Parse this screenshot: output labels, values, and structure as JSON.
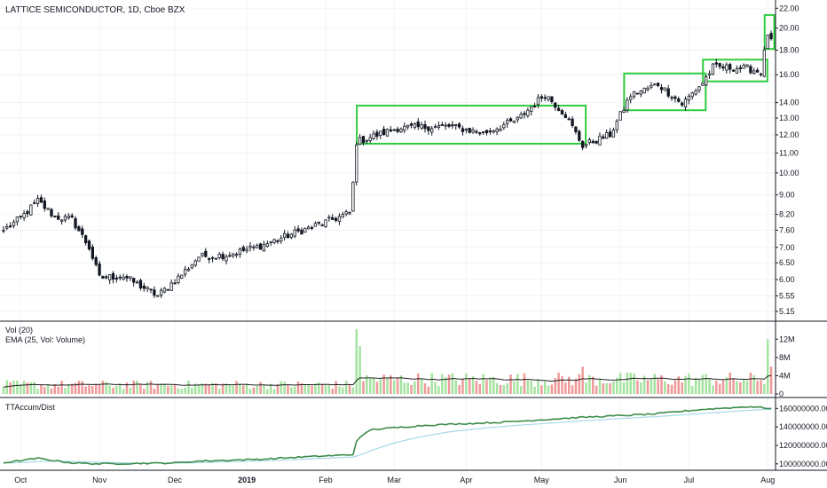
{
  "chart_data": {
    "type": "candlestick",
    "title": "LATTICE SEMICONDUCTOR, 1D, Cboe BZX",
    "x_labels": [
      "Oct",
      "Nov",
      "Dec",
      "2019",
      "Feb",
      "Mar",
      "Apr",
      "May",
      "Jun",
      "Jul",
      "Aug"
    ],
    "price_axis": {
      "scale": "log",
      "ticks": [
        "22.00",
        "20.00",
        "18.00",
        "16.00",
        "14.00",
        "13.00",
        "12.00",
        "11.00",
        "10.00",
        "9.00",
        "8.20",
        "7.60",
        "7.00",
        "6.50",
        "6.00",
        "5.55",
        "5.15"
      ],
      "range": [
        5.0,
        22.5
      ]
    },
    "price_path": [
      {
        "date": "2018-09-24",
        "close": 7.6
      },
      {
        "date": "2018-10-01",
        "close": 8.05
      },
      {
        "date": "2018-10-08",
        "close": 8.75
      },
      {
        "date": "2018-10-15",
        "close": 8.1
      },
      {
        "date": "2018-10-22",
        "close": 8.0
      },
      {
        "date": "2018-10-29",
        "close": 7.0
      },
      {
        "date": "2018-11-01",
        "close": 6.05
      },
      {
        "date": "2018-11-12",
        "close": 6.1
      },
      {
        "date": "2018-11-26",
        "close": 5.55
      },
      {
        "date": "2018-12-05",
        "close": 6.15
      },
      {
        "date": "2018-12-12",
        "close": 6.7
      },
      {
        "date": "2018-12-24",
        "close": 6.75
      },
      {
        "date": "2019-01-07",
        "close": 7.05
      },
      {
        "date": "2019-01-21",
        "close": 7.5
      },
      {
        "date": "2019-02-04",
        "close": 7.95
      },
      {
        "date": "2019-02-12",
        "close": 8.25
      },
      {
        "date": "2019-02-13",
        "close": 9.5
      },
      {
        "date": "2019-02-14",
        "close": 11.6
      },
      {
        "date": "2019-03-04",
        "close": 12.4
      },
      {
        "date": "2019-03-25",
        "close": 12.5
      },
      {
        "date": "2019-04-08",
        "close": 12.1
      },
      {
        "date": "2019-04-22",
        "close": 12.9
      },
      {
        "date": "2019-05-02",
        "close": 14.6
      },
      {
        "date": "2019-05-10",
        "close": 13.2
      },
      {
        "date": "2019-05-17",
        "close": 11.4
      },
      {
        "date": "2019-05-29",
        "close": 12.0
      },
      {
        "date": "2019-06-06",
        "close": 14.5
      },
      {
        "date": "2019-06-18",
        "close": 15.3
      },
      {
        "date": "2019-06-27",
        "close": 13.9
      },
      {
        "date": "2019-07-05",
        "close": 15.4
      },
      {
        "date": "2019-07-10",
        "close": 16.6
      },
      {
        "date": "2019-07-24",
        "close": 16.5
      },
      {
        "date": "2019-07-30",
        "close": 16.2
      },
      {
        "date": "2019-08-01",
        "close": 19.5
      },
      {
        "date": "2019-08-02",
        "close": 19.0
      }
    ],
    "highlight_boxes": [
      {
        "start": "2019-02-15",
        "end": "2019-05-17",
        "low": 11.5,
        "high": 13.8
      },
      {
        "start": "2019-06-05",
        "end": "2019-07-05",
        "low": 13.5,
        "high": 16.1
      },
      {
        "start": "2019-07-08",
        "end": "2019-07-31",
        "low": 15.5,
        "high": 17.2
      },
      {
        "start": "2019-08-01",
        "end": "2019-08-02",
        "low": 18.1,
        "high": 21.3
      }
    ],
    "volume": {
      "label": "Vol (20)",
      "ema_label": "EMA (25, Vol: Volume)",
      "ticks": [
        "12M",
        "8M",
        "4M",
        "0"
      ],
      "range": [
        0,
        14
      ],
      "spikes": [
        {
          "date": "2019-02-14",
          "value": 14.2
        },
        {
          "date": "2019-02-15",
          "value": 10.5
        },
        {
          "date": "2019-05-17",
          "value": 6.0
        },
        {
          "date": "2019-08-01",
          "value": 12.0
        },
        {
          "date": "2019-08-02",
          "value": 6.0
        }
      ]
    },
    "indicator": {
      "label": "TTAccum/Dist",
      "ticks": [
        "160000000.00",
        "140000000.00",
        "120000000.00",
        "100000000.00"
      ],
      "range": [
        95000000,
        168000000
      ],
      "series": [
        {
          "date": "2018-09-24",
          "value": 101000000
        },
        {
          "date": "2018-10-08",
          "value": 106000000
        },
        {
          "date": "2018-10-22",
          "value": 101000000
        },
        {
          "date": "2018-11-01",
          "value": 100000000
        },
        {
          "date": "2018-12-01",
          "value": 101000000
        },
        {
          "date": "2018-12-12",
          "value": 103000000
        },
        {
          "date": "2019-01-07",
          "value": 105000000
        },
        {
          "date": "2019-01-21",
          "value": 107000000
        },
        {
          "date": "2019-02-13",
          "value": 110000000
        },
        {
          "date": "2019-02-14",
          "value": 125000000
        },
        {
          "date": "2019-02-20",
          "value": 137000000
        },
        {
          "date": "2019-03-15",
          "value": 142000000
        },
        {
          "date": "2019-04-15",
          "value": 145000000
        },
        {
          "date": "2019-05-15",
          "value": 150000000
        },
        {
          "date": "2019-06-15",
          "value": 154000000
        },
        {
          "date": "2019-07-05",
          "value": 159000000
        },
        {
          "date": "2019-07-25",
          "value": 162000000
        },
        {
          "date": "2019-08-02",
          "value": 160000000
        }
      ]
    },
    "colors": {
      "up_volume": "#a5e3a0",
      "down_volume": "#ef9a9a",
      "box": "#2ecc40",
      "accum": "#3d8b4a",
      "accum_ma": "#a8d8e8",
      "ema": "#222222"
    }
  }
}
